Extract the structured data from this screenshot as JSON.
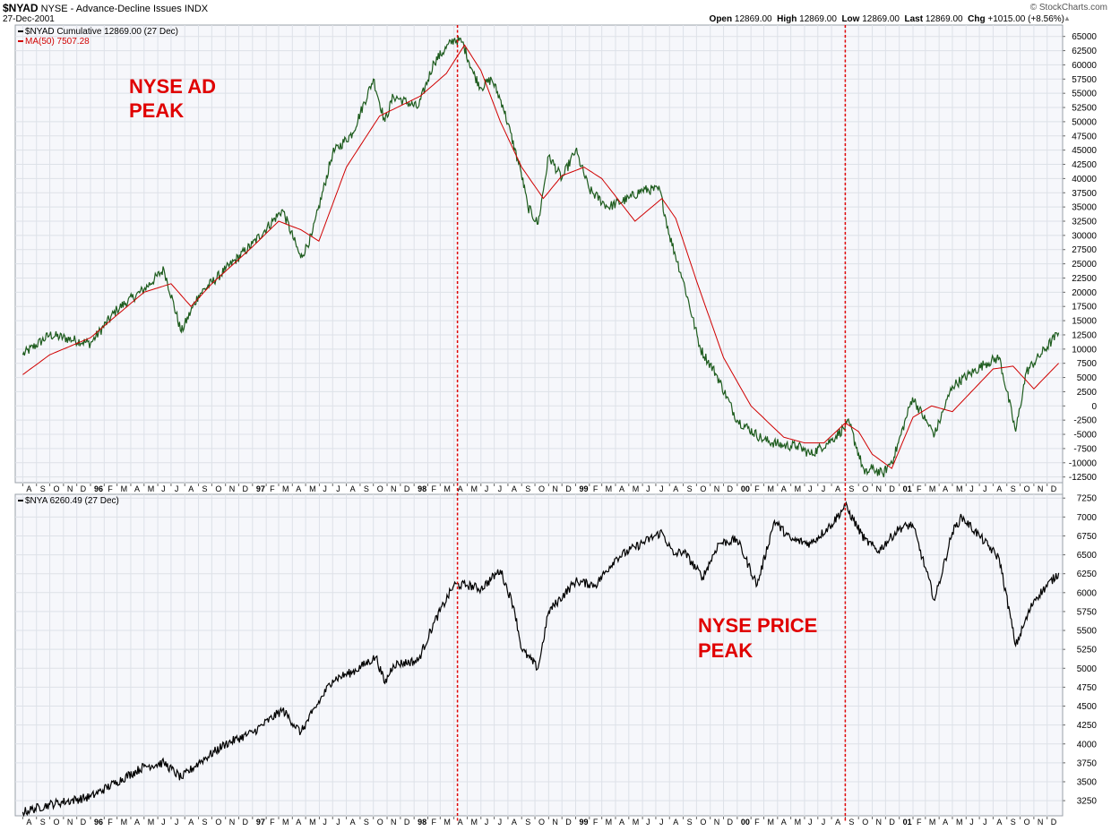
{
  "header": {
    "symbol": "$NYAD",
    "exchange_desc": "NYSE - Advance-Decline Issues",
    "index_tag": "INDX",
    "date": "27-Dec-2001",
    "watermark": "© StockCharts.com",
    "quote": {
      "open_label": "Open",
      "open": "12869.00",
      "high_label": "High",
      "high": "12869.00",
      "low_label": "Low",
      "low": "12869.00",
      "last_label": "Last",
      "last": "12869.00",
      "chg_label": "Chg",
      "chg": "+1015.00 (+8.56%)"
    }
  },
  "chart_data": [
    {
      "type": "line",
      "panel": "top",
      "legend": [
        {
          "text": "$NYAD Cumulative 12869.00 (27 Dec)",
          "color": "#000000"
        },
        {
          "text": "MA(50) 7507.28",
          "color": "#d00000"
        }
      ],
      "ylim": [
        -13500,
        67000
      ],
      "yticks": [
        65000,
        62500,
        60000,
        57500,
        55000,
        52500,
        50000,
        47500,
        45000,
        42500,
        40000,
        37500,
        35000,
        32500,
        30000,
        27500,
        25000,
        22500,
        20000,
        17500,
        15000,
        12500,
        10000,
        7500,
        5000,
        2500,
        0,
        -2500,
        -5000,
        -7500,
        -10000,
        -12500
      ],
      "series": [
        {
          "name": "$NYAD Cumulative",
          "color": "#1e5c1e",
          "x": [
            "1995-08-01",
            "1995-10-01",
            "1996-01-01",
            "1996-03-01",
            "1996-05-01",
            "1996-06-15",
            "1996-07-24",
            "1996-09-01",
            "1996-11-01",
            "1997-01-01",
            "1997-03-10",
            "1997-04-20",
            "1997-05-15",
            "1997-07-01",
            "1997-08-15",
            "1997-10-01",
            "1997-10-27",
            "1997-11-15",
            "1998-01-10",
            "1998-02-15",
            "1998-04-01",
            "1998-04-20",
            "1998-05-15",
            "1998-06-01",
            "1998-06-25",
            "1998-07-20",
            "1998-08-31",
            "1998-09-15",
            "1998-10-08",
            "1998-11-01",
            "1998-12-01",
            "1999-01-01",
            "1999-02-01",
            "1999-03-15",
            "1999-05-01",
            "1999-06-01",
            "1999-07-10",
            "1999-08-01",
            "1999-09-01",
            "1999-10-10",
            "1999-11-15",
            "2000-01-01",
            "2000-03-01",
            "2000-04-15",
            "2000-05-15",
            "2000-06-15",
            "2000-08-01",
            "2000-09-10",
            "2000-10-15",
            "2000-11-01",
            "2000-11-25",
            "2000-12-20",
            "2001-01-31",
            "2001-03-01",
            "2001-03-22",
            "2001-05-01",
            "2001-07-15",
            "2001-08-15",
            "2001-09-21",
            "2001-10-15",
            "2001-12-27"
          ],
          "values": [
            9000,
            12500,
            11000,
            17000,
            20500,
            24000,
            13000,
            19500,
            24000,
            28500,
            34500,
            26000,
            30000,
            44500,
            48000,
            57500,
            50000,
            54500,
            52500,
            60500,
            64500,
            64000,
            58500,
            56000,
            57500,
            53000,
            41000,
            35000,
            32000,
            44000,
            40000,
            45000,
            38000,
            35000,
            36500,
            38000,
            38000,
            30000,
            22000,
            10000,
            5500,
            -2500,
            -6000,
            -7000,
            -7000,
            -8500,
            -6000,
            -3000,
            -12000,
            -11000,
            -12000,
            -9000,
            1500,
            -2500,
            -5000,
            3500,
            7500,
            8500,
            -4500,
            6000,
            12869
          ]
        },
        {
          "name": "MA(50)",
          "color": "#d00000",
          "x": [
            "1995-08-01",
            "1995-10-01",
            "1996-01-01",
            "1996-03-01",
            "1996-05-01",
            "1996-07-01",
            "1996-08-15",
            "1996-10-01",
            "1997-01-01",
            "1997-03-01",
            "1997-04-20",
            "1997-05-31",
            "1997-08-01",
            "1997-10-15",
            "1998-01-15",
            "1998-03-15",
            "1998-04-25",
            "1998-06-01",
            "1998-07-15",
            "1998-09-01",
            "1998-10-20",
            "1998-12-01",
            "1999-01-20",
            "1999-03-01",
            "1999-04-15",
            "1999-05-15",
            "1999-07-15",
            "1999-08-15",
            "1999-10-01",
            "1999-12-01",
            "2000-02-01",
            "2000-04-15",
            "2000-06-01",
            "2000-07-15",
            "2000-09-01",
            "2000-10-01",
            "2000-11-01",
            "2000-12-15",
            "2001-02-01",
            "2001-03-15",
            "2001-05-01",
            "2001-08-01",
            "2001-09-15",
            "2001-11-01",
            "2001-12-27"
          ],
          "values": [
            5500,
            9000,
            12000,
            16000,
            20000,
            21500,
            17500,
            21500,
            28000,
            32500,
            31000,
            29000,
            42000,
            51000,
            54500,
            58500,
            63500,
            59000,
            50000,
            42000,
            36500,
            40500,
            42000,
            40000,
            35500,
            32500,
            36500,
            33000,
            22000,
            8500,
            0,
            -5500,
            -6500,
            -6500,
            -3000,
            -4500,
            -8500,
            -11000,
            -2000,
            0,
            -1000,
            6500,
            7000,
            3000,
            7507.28
          ]
        }
      ]
    },
    {
      "type": "line",
      "panel": "bottom",
      "legend": [
        {
          "text": "$NYA 6260.49 (27 Dec)",
          "color": "#000000"
        }
      ],
      "ylim": [
        3050,
        7300
      ],
      "yticks": [
        7250,
        7000,
        6750,
        6500,
        6250,
        6000,
        5750,
        5500,
        5250,
        5000,
        4750,
        4500,
        4250,
        4000,
        3750,
        3500,
        3250
      ],
      "series": [
        {
          "name": "$NYA",
          "color": "#000000",
          "x": [
            "1995-08-01",
            "1995-10-01",
            "1996-01-01",
            "1996-03-01",
            "1996-05-01",
            "1996-06-15",
            "1996-07-24",
            "1996-09-01",
            "1996-11-01",
            "1997-01-01",
            "1997-03-10",
            "1997-04-20",
            "1997-05-15",
            "1997-07-01",
            "1997-08-15",
            "1997-10-07",
            "1997-10-27",
            "1997-11-15",
            "1998-01-10",
            "1998-02-15",
            "1998-04-01",
            "1998-05-01",
            "1998-06-01",
            "1998-07-15",
            "1998-08-15",
            "1998-09-01",
            "1998-10-08",
            "1998-11-01",
            "1999-01-01",
            "1999-02-15",
            "1999-04-01",
            "1999-05-15",
            "1999-07-15",
            "1999-08-10",
            "1999-09-01",
            "1999-10-15",
            "1999-11-20",
            "2000-01-01",
            "2000-02-15",
            "2000-03-25",
            "2000-05-01",
            "2000-06-15",
            "2000-08-01",
            "2000-09-01",
            "2000-10-15",
            "2000-11-15",
            "2001-01-01",
            "2001-01-31",
            "2001-03-22",
            "2001-05-01",
            "2001-05-22",
            "2001-07-01",
            "2001-08-15",
            "2001-09-21",
            "2001-11-01",
            "2001-12-27"
          ],
          "values": [
            3100,
            3200,
            3300,
            3500,
            3700,
            3750,
            3550,
            3750,
            4000,
            4150,
            4450,
            4150,
            4400,
            4850,
            4950,
            5150,
            4800,
            5050,
            5100,
            5600,
            6100,
            6100,
            6050,
            6300,
            5800,
            5250,
            5000,
            5750,
            6150,
            6100,
            6450,
            6600,
            6800,
            6500,
            6550,
            6200,
            6650,
            6700,
            6100,
            6950,
            6700,
            6650,
            6900,
            7150,
            6700,
            6550,
            6850,
            6900,
            5900,
            6800,
            7000,
            6750,
            6450,
            5300,
            5900,
            6260.49
          ]
        }
      ]
    }
  ],
  "annotations": {
    "ad_peak_line1": "NYSE AD",
    "ad_peak_line2": "PEAK",
    "price_peak_line1": "NYSE PRICE",
    "price_peak_line2": "PEAK",
    "ad_peak_date": "1998-04-09",
    "price_peak_date": "2000-09-01",
    "line_color": "#e00000"
  },
  "x_axis": {
    "start": "1995-07-15",
    "end": "2002-01-05",
    "months": [
      {
        "date": "1995-08-01",
        "label": "A"
      },
      {
        "date": "1995-09-01",
        "label": "S"
      },
      {
        "date": "1995-10-01",
        "label": "O"
      },
      {
        "date": "1995-11-01",
        "label": "N"
      },
      {
        "date": "1995-12-01",
        "label": "D"
      },
      {
        "date": "1996-01-01",
        "label": "96",
        "year": true
      },
      {
        "date": "1996-02-01",
        "label": "F"
      },
      {
        "date": "1996-03-01",
        "label": "M"
      },
      {
        "date": "1996-04-01",
        "label": "A"
      },
      {
        "date": "1996-05-01",
        "label": "M"
      },
      {
        "date": "1996-06-01",
        "label": "J"
      },
      {
        "date": "1996-07-01",
        "label": "J"
      },
      {
        "date": "1996-08-01",
        "label": "A"
      },
      {
        "date": "1996-09-01",
        "label": "S"
      },
      {
        "date": "1996-10-01",
        "label": "O"
      },
      {
        "date": "1996-11-01",
        "label": "N"
      },
      {
        "date": "1996-12-01",
        "label": "D"
      },
      {
        "date": "1997-01-01",
        "label": "97",
        "year": true
      },
      {
        "date": "1997-02-01",
        "label": "F"
      },
      {
        "date": "1997-03-01",
        "label": "M"
      },
      {
        "date": "1997-04-01",
        "label": "A"
      },
      {
        "date": "1997-05-01",
        "label": "M"
      },
      {
        "date": "1997-06-01",
        "label": "J"
      },
      {
        "date": "1997-07-01",
        "label": "J"
      },
      {
        "date": "1997-08-01",
        "label": "A"
      },
      {
        "date": "1997-09-01",
        "label": "S"
      },
      {
        "date": "1997-10-01",
        "label": "O"
      },
      {
        "date": "1997-11-01",
        "label": "N"
      },
      {
        "date": "1997-12-01",
        "label": "D"
      },
      {
        "date": "1998-01-01",
        "label": "98",
        "year": true
      },
      {
        "date": "1998-02-01",
        "label": "F"
      },
      {
        "date": "1998-03-01",
        "label": "M"
      },
      {
        "date": "1998-04-01",
        "label": "A"
      },
      {
        "date": "1998-05-01",
        "label": "M"
      },
      {
        "date": "1998-06-01",
        "label": "J"
      },
      {
        "date": "1998-07-01",
        "label": "J"
      },
      {
        "date": "1998-08-01",
        "label": "A"
      },
      {
        "date": "1998-09-01",
        "label": "S"
      },
      {
        "date": "1998-10-01",
        "label": "O"
      },
      {
        "date": "1998-11-01",
        "label": "N"
      },
      {
        "date": "1998-12-01",
        "label": "D"
      },
      {
        "date": "1999-01-01",
        "label": "99",
        "year": true
      },
      {
        "date": "1999-02-01",
        "label": "F"
      },
      {
        "date": "1999-03-01",
        "label": "M"
      },
      {
        "date": "1999-04-01",
        "label": "A"
      },
      {
        "date": "1999-05-01",
        "label": "M"
      },
      {
        "date": "1999-06-01",
        "label": "J"
      },
      {
        "date": "1999-07-01",
        "label": "J"
      },
      {
        "date": "1999-08-01",
        "label": "A"
      },
      {
        "date": "1999-09-01",
        "label": "S"
      },
      {
        "date": "1999-10-01",
        "label": "O"
      },
      {
        "date": "1999-11-01",
        "label": "N"
      },
      {
        "date": "1999-12-01",
        "label": "D"
      },
      {
        "date": "2000-01-01",
        "label": "00",
        "year": true
      },
      {
        "date": "2000-02-01",
        "label": "F"
      },
      {
        "date": "2000-03-01",
        "label": "M"
      },
      {
        "date": "2000-04-01",
        "label": "A"
      },
      {
        "date": "2000-05-01",
        "label": "M"
      },
      {
        "date": "2000-06-01",
        "label": "J"
      },
      {
        "date": "2000-07-01",
        "label": "J"
      },
      {
        "date": "2000-08-01",
        "label": "A"
      },
      {
        "date": "2000-09-01",
        "label": "S"
      },
      {
        "date": "2000-10-01",
        "label": "O"
      },
      {
        "date": "2000-11-01",
        "label": "N"
      },
      {
        "date": "2000-12-01",
        "label": "D"
      },
      {
        "date": "2001-01-01",
        "label": "01",
        "year": true
      },
      {
        "date": "2001-02-01",
        "label": "F"
      },
      {
        "date": "2001-03-01",
        "label": "M"
      },
      {
        "date": "2001-04-01",
        "label": "A"
      },
      {
        "date": "2001-05-01",
        "label": "M"
      },
      {
        "date": "2001-06-01",
        "label": "J"
      },
      {
        "date": "2001-07-01",
        "label": "J"
      },
      {
        "date": "2001-08-01",
        "label": "A"
      },
      {
        "date": "2001-09-01",
        "label": "S"
      },
      {
        "date": "2001-10-01",
        "label": "O"
      },
      {
        "date": "2001-11-01",
        "label": "N"
      },
      {
        "date": "2001-12-01",
        "label": "D"
      }
    ]
  }
}
